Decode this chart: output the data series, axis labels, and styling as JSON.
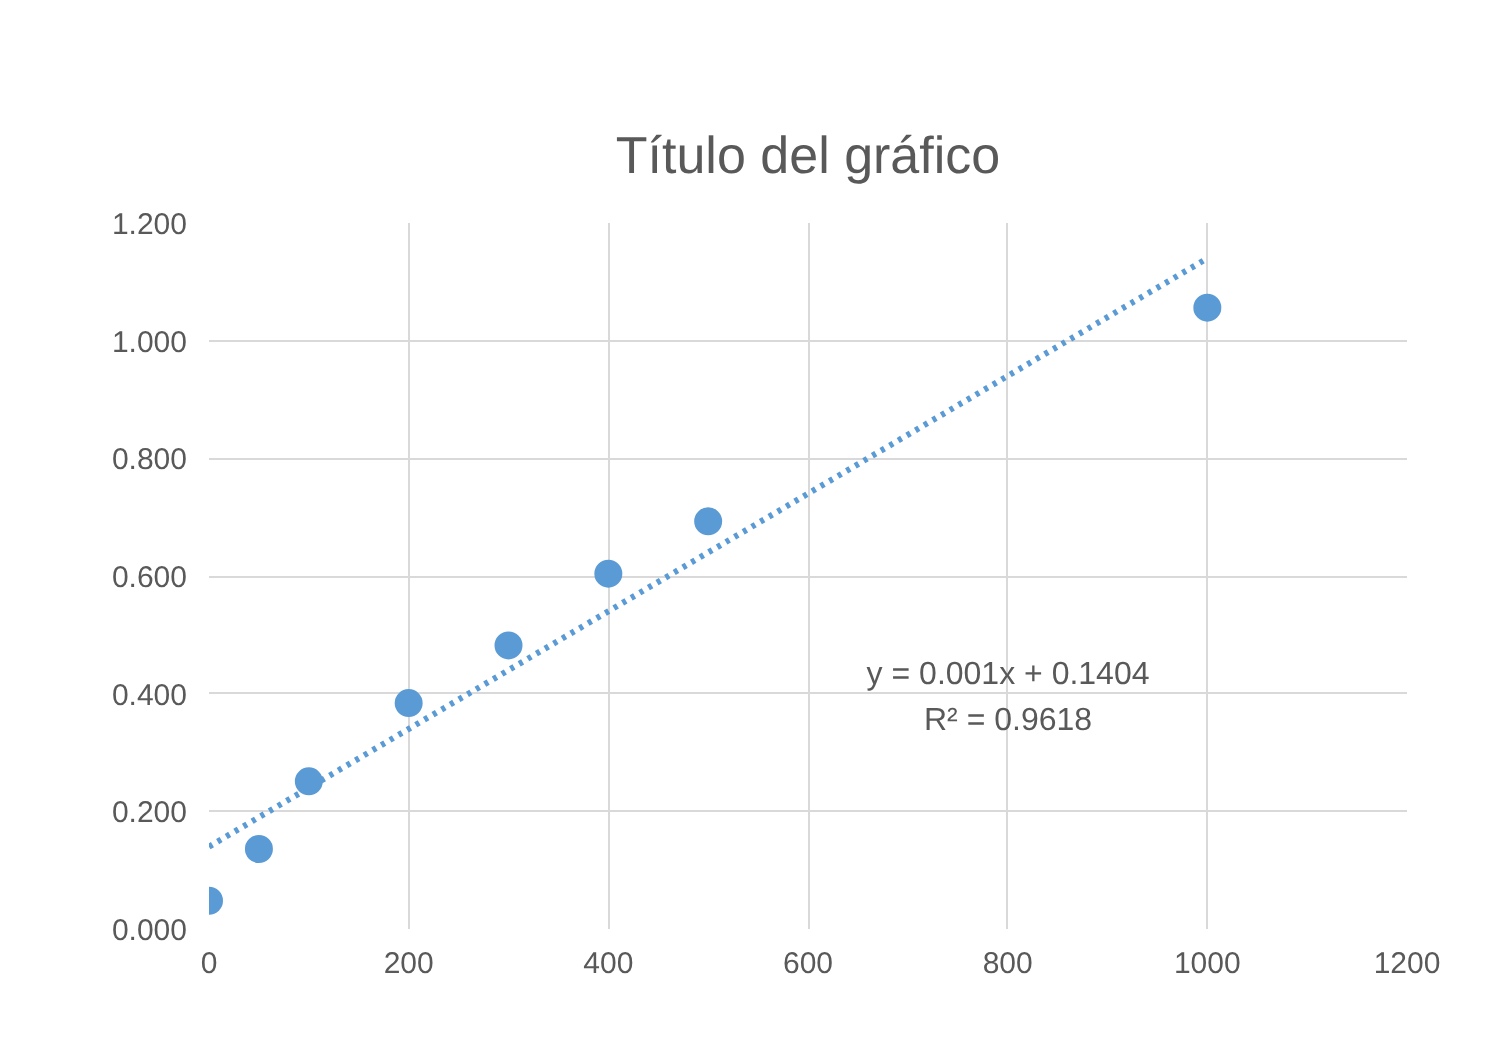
{
  "chart_data": {
    "type": "scatter",
    "title": "Título del gráfico",
    "x": [
      0,
      50,
      100,
      200,
      300,
      400,
      500,
      1000
    ],
    "series": [
      {
        "color": "#5b9bd5",
        "values": [
          0.048,
          0.136,
          0.251,
          0.384,
          0.482,
          0.604,
          0.693,
          1.056
        ],
        "marker": "circle"
      },
      {
        "type": "line",
        "color": "#5b9bd5",
        "x": [
          0,
          1000
        ],
        "values": [
          0.14,
          1.14
        ],
        "line_style": "dotted",
        "marker": "none"
      }
    ],
    "annotations": [
      "y = 0.001x + 0.1404",
      "R² = 0.9618"
    ],
    "xlim": [
      0,
      1200
    ],
    "ylim": [
      0,
      1.2
    ],
    "xticks": [
      0,
      200,
      400,
      600,
      800,
      1000,
      1200
    ],
    "yticks": [
      {
        "value": 0,
        "label": "0.000"
      },
      {
        "value": 0.2,
        "label": "0.200"
      },
      {
        "value": 0.4,
        "label": "0.400"
      },
      {
        "value": 0.6,
        "label": "0.600"
      },
      {
        "value": 0.8,
        "label": "0.800"
      },
      {
        "value": 1.0,
        "label": "1.000"
      },
      {
        "value": 1.2,
        "label": "1.200"
      }
    ],
    "grid": true
  }
}
